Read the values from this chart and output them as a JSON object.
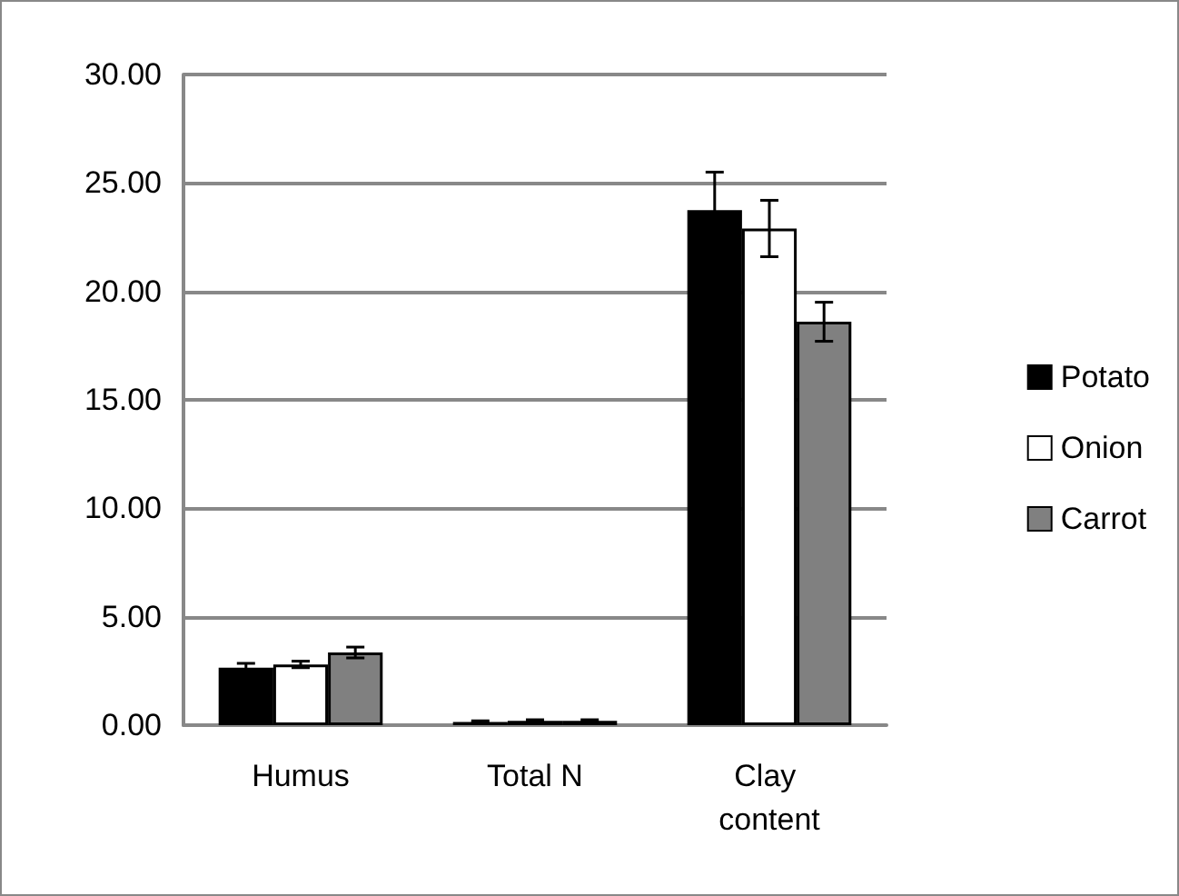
{
  "chart_data": {
    "type": "bar",
    "categories": [
      "Humus",
      "Total N",
      "Clay content"
    ],
    "series": [
      {
        "name": "Potato",
        "color": "#000000",
        "values": [
          2.65,
          0.15,
          23.75
        ],
        "errors": [
          0.2,
          0.05,
          1.75
        ]
      },
      {
        "name": "Onion",
        "color": "#ffffff",
        "values": [
          2.8,
          0.2,
          22.9
        ],
        "errors": [
          0.15,
          0.05,
          1.3
        ]
      },
      {
        "name": "Carrot",
        "color": "#808080",
        "values": [
          3.35,
          0.2,
          18.6
        ],
        "errors": [
          0.25,
          0.05,
          0.9
        ]
      }
    ],
    "ylim": [
      0,
      30
    ],
    "yticks": [
      {
        "value": 0,
        "label": "0.00"
      },
      {
        "value": 5,
        "label": "5.00"
      },
      {
        "value": 10,
        "label": "10.00"
      },
      {
        "value": 15,
        "label": "15.00"
      },
      {
        "value": 20,
        "label": "20.00"
      },
      {
        "value": 25,
        "label": "25.00"
      },
      {
        "value": 30,
        "label": "30.00"
      }
    ],
    "grid": "y",
    "legend": "right"
  }
}
